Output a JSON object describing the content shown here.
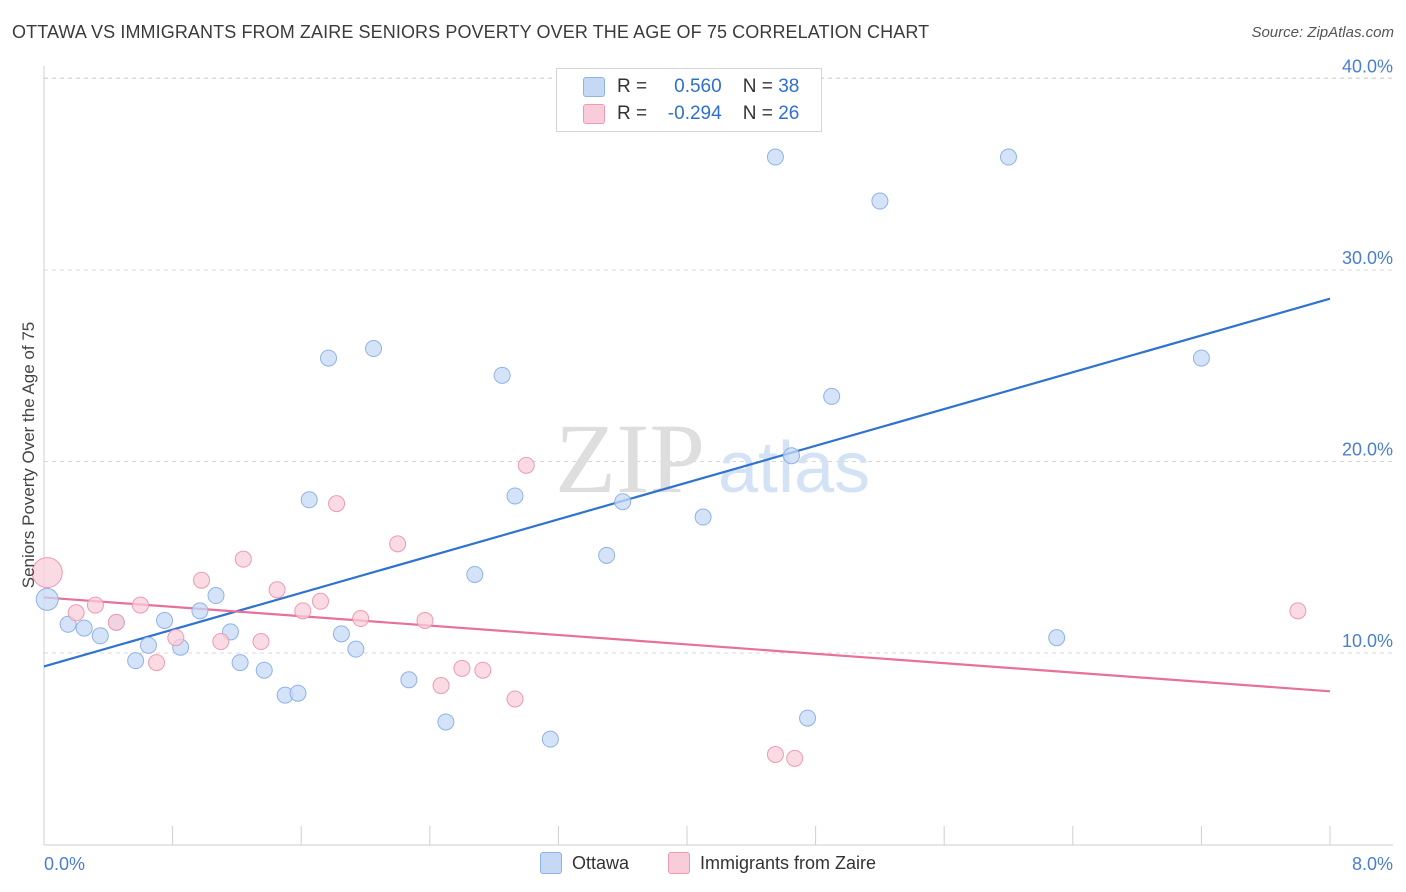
{
  "title": "OTTAWA VS IMMIGRANTS FROM ZAIRE SENIORS POVERTY OVER THE AGE OF 75 CORRELATION CHART",
  "source": "Source: ZipAtlas.com",
  "watermark": {
    "zip": "ZIP",
    "atlas": "atlas"
  },
  "legend": {
    "rows": [
      {
        "r_label": "R =",
        "r_value": "0.560",
        "n_label": "N =",
        "n_value": "38"
      },
      {
        "r_label": "R =",
        "r_value": "-0.294",
        "n_label": "N =",
        "n_value": "26"
      }
    ]
  },
  "colors": {
    "ottawa_fill": "#c5d9f5",
    "ottawa_stroke": "#8fb3e6",
    "ottawa_line": "#2f72d0",
    "zaire_fill": "#f8cdd9",
    "zaire_stroke": "#ee9ab3",
    "zaire_line": "#e8709a",
    "tick_text": "#4a7fd0",
    "grid": "#d8d8d8"
  },
  "chart_data": {
    "type": "scatter",
    "title": "OTTAWA VS IMMIGRANTS FROM ZAIRE SENIORS POVERTY OVER THE AGE OF 75 CORRELATION CHART",
    "xlabel": "",
    "ylabel": "Seniors Poverty Over the Age of 75",
    "xlim": [
      0,
      8
    ],
    "ylim": [
      0,
      40
    ],
    "x_tick_labels": [
      "0.0%",
      "8.0%"
    ],
    "y_ticks": [
      10,
      20,
      30,
      40
    ],
    "y_tick_labels": [
      "10.0%",
      "20.0%",
      "30.0%",
      "40.0%"
    ],
    "series": [
      {
        "name": "Ottawa",
        "points": [
          [
            0.02,
            12.8
          ],
          [
            0.15,
            11.5
          ],
          [
            0.25,
            11.3
          ],
          [
            0.35,
            10.9
          ],
          [
            0.45,
            11.6
          ],
          [
            0.57,
            9.6
          ],
          [
            0.65,
            10.4
          ],
          [
            0.75,
            11.7
          ],
          [
            0.85,
            10.3
          ],
          [
            0.97,
            12.2
          ],
          [
            1.07,
            13.0
          ],
          [
            1.16,
            11.1
          ],
          [
            1.22,
            9.5
          ],
          [
            1.37,
            9.1
          ],
          [
            1.5,
            7.8
          ],
          [
            1.58,
            7.9
          ],
          [
            1.65,
            18.0
          ],
          [
            1.77,
            25.4
          ],
          [
            1.85,
            11.0
          ],
          [
            1.94,
            10.2
          ],
          [
            2.05,
            25.9
          ],
          [
            2.27,
            8.6
          ],
          [
            2.5,
            6.4
          ],
          [
            2.68,
            14.1
          ],
          [
            2.85,
            24.5
          ],
          [
            2.93,
            18.2
          ],
          [
            3.15,
            5.5
          ],
          [
            3.5,
            15.1
          ],
          [
            3.6,
            17.9
          ],
          [
            4.1,
            17.1
          ],
          [
            4.55,
            35.9
          ],
          [
            4.65,
            20.3
          ],
          [
            4.75,
            6.6
          ],
          [
            4.9,
            23.4
          ],
          [
            5.2,
            33.6
          ],
          [
            6.0,
            35.9
          ],
          [
            6.3,
            10.8
          ],
          [
            7.2,
            25.4
          ]
        ],
        "trendline": {
          "x": [
            0,
            8
          ],
          "y": [
            9.3,
            28.5
          ]
        }
      },
      {
        "name": "Immigrants from Zaire",
        "points": [
          [
            0.02,
            14.2
          ],
          [
            0.2,
            12.1
          ],
          [
            0.32,
            12.5
          ],
          [
            0.45,
            11.6
          ],
          [
            0.6,
            12.5
          ],
          [
            0.7,
            9.5
          ],
          [
            0.82,
            10.8
          ],
          [
            0.98,
            13.8
          ],
          [
            1.1,
            10.6
          ],
          [
            1.24,
            14.9
          ],
          [
            1.35,
            10.6
          ],
          [
            1.45,
            13.3
          ],
          [
            1.61,
            12.2
          ],
          [
            1.72,
            12.7
          ],
          [
            1.82,
            17.8
          ],
          [
            1.97,
            11.8
          ],
          [
            2.2,
            15.7
          ],
          [
            2.37,
            11.7
          ],
          [
            2.47,
            8.3
          ],
          [
            2.6,
            9.2
          ],
          [
            2.73,
            9.1
          ],
          [
            2.93,
            7.6
          ],
          [
            3.0,
            19.8
          ],
          [
            4.55,
            4.7
          ],
          [
            4.67,
            4.5
          ],
          [
            7.8,
            12.2
          ]
        ],
        "trendline": {
          "x": [
            0,
            8
          ],
          "y": [
            12.9,
            8.0
          ]
        }
      }
    ],
    "legend_position": "top-center"
  }
}
